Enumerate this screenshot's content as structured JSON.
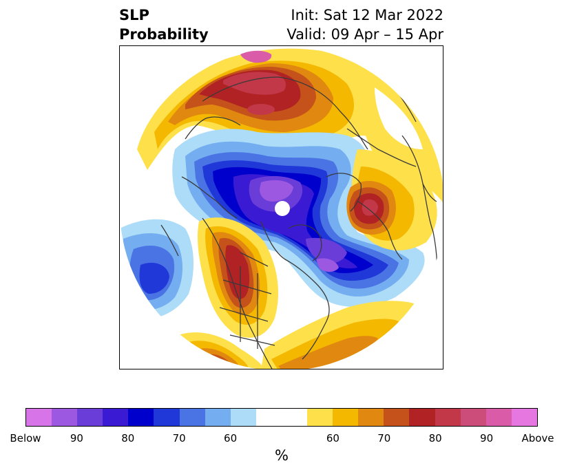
{
  "title": {
    "line1": "SLP",
    "line2": "Probability",
    "init": "Init: Sat 12 Mar 2022",
    "valid": "Valid: 09 Apr – 15 Apr"
  },
  "colorbar": {
    "colors": [
      "#d674e8",
      "#9c58e0",
      "#6a3cd8",
      "#3a1ad2",
      "#0000cc",
      "#2038d8",
      "#4a74e4",
      "#74aef0",
      "#acdcf8",
      "#ffffff",
      "#ffffff",
      "#fee04a",
      "#f4b800",
      "#e08810",
      "#c4521a",
      "#b02224",
      "#c23848",
      "#cc4c7a",
      "#da5ca8",
      "#e676e0"
    ],
    "ticks": [
      {
        "label": "Below",
        "index": 0
      },
      {
        "label": "90",
        "index": 2
      },
      {
        "label": "80",
        "index": 4
      },
      {
        "label": "70",
        "index": 6
      },
      {
        "label": "60",
        "index": 8
      },
      {
        "label": "60",
        "index": 12
      },
      {
        "label": "70",
        "index": 14
      },
      {
        "label": "80",
        "index": 16
      },
      {
        "label": "90",
        "index": 18
      },
      {
        "label": "Above",
        "index": 20
      }
    ],
    "unit": "%"
  }
}
